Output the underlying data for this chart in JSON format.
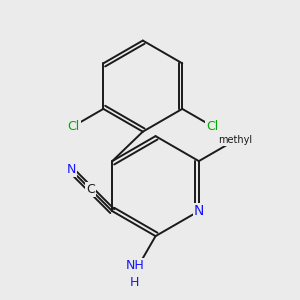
{
  "bg_color": "#ebebeb",
  "bond_color": "#1a1a1a",
  "bond_width": 1.4,
  "atom_bg": "#ebebeb",
  "N_color": "#1414ff",
  "Cl_color": "#00aa00",
  "C_color": "#1a1a1a",
  "NH_color": "#1414ff",
  "figsize": [
    3.0,
    3.0
  ],
  "dpi": 100,
  "xlim": [
    -2.6,
    2.6
  ],
  "ylim": [
    -2.8,
    2.5
  ]
}
